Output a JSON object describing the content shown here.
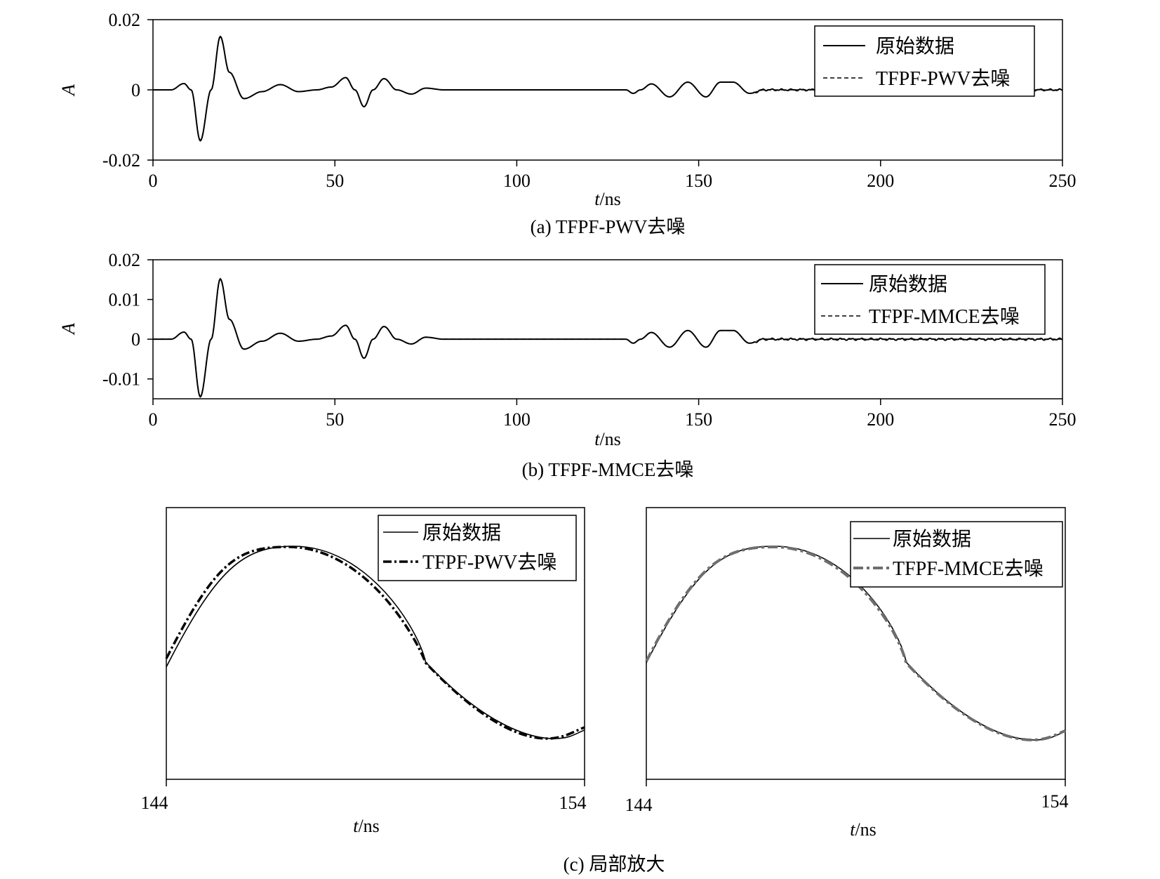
{
  "chart_data": [
    {
      "id": "a",
      "type": "line",
      "caption": "(a) TFPF-PWV去噪",
      "xlabel_var": "t",
      "xlabel_unit": "/ns",
      "ylabel": "A",
      "xlim": [
        0,
        250
      ],
      "ylim": [
        -0.02,
        0.02
      ],
      "xticks": [
        "0",
        "50",
        "100",
        "150",
        "200",
        "250"
      ],
      "yticks": [
        "0.02",
        "0",
        "-0.02"
      ],
      "ytick_values": [
        0.02,
        0,
        -0.02
      ],
      "legend_position": "top-right",
      "series": [
        {
          "name": "原始数据",
          "style": "solid",
          "color": "#000000"
        },
        {
          "name": "TFPF-PWV去噪",
          "style": "dashed",
          "color": "#000000"
        }
      ],
      "key_points": {
        "t": [
          0,
          5,
          8.5,
          10.5,
          13,
          16,
          18.5,
          21,
          25,
          30,
          35,
          40,
          45,
          49,
          53,
          55.5,
          58,
          60.5,
          63.5,
          67,
          71,
          75,
          80,
          125,
          130,
          132,
          134,
          137,
          142,
          147,
          152,
          156,
          159.5,
          164,
          168,
          175,
          250
        ],
        "A": [
          0,
          0,
          0.0018,
          0,
          -0.0145,
          0,
          0.0152,
          0.005,
          -0.0025,
          -0.0005,
          0.0015,
          -0.0005,
          0,
          0.0008,
          0.0035,
          0,
          -0.0048,
          0,
          0.0032,
          0,
          -0.0012,
          0.0005,
          0,
          0,
          0,
          -0.001,
          0,
          0.0017,
          -0.002,
          0.0022,
          -0.002,
          0.0022,
          0.0022,
          -0.001,
          0,
          0,
          0
        ]
      }
    },
    {
      "id": "b",
      "type": "line",
      "caption": "(b) TFPF-MMCE去噪",
      "xlabel_var": "t",
      "xlabel_unit": "/ns",
      "ylabel": "A",
      "xlim": [
        0,
        250
      ],
      "ylim": [
        -0.015,
        0.02
      ],
      "xticks": [
        "0",
        "50",
        "100",
        "150",
        "200",
        "250"
      ],
      "yticks": [
        "0.02",
        "0.01",
        "0",
        "-0.01"
      ],
      "ytick_values": [
        0.02,
        0.01,
        0,
        -0.01
      ],
      "legend_position": "top-right",
      "series": [
        {
          "name": "原始数据",
          "style": "solid",
          "color": "#000000"
        },
        {
          "name": "TFPF-MMCE去噪",
          "style": "dashed",
          "color": "#000000"
        }
      ],
      "key_points": {
        "t": [
          0,
          5,
          8.5,
          10.5,
          13,
          16,
          18.5,
          21,
          25,
          30,
          35,
          40,
          45,
          49,
          53,
          55.5,
          58,
          60.5,
          63.5,
          67,
          71,
          75,
          80,
          125,
          130,
          132,
          134,
          137,
          142,
          147,
          152,
          156,
          159.5,
          164,
          168,
          175,
          250
        ],
        "A": [
          0,
          0,
          0.0018,
          0,
          -0.0145,
          0,
          0.0152,
          0.005,
          -0.0025,
          -0.0005,
          0.0015,
          -0.0005,
          0,
          0.0008,
          0.0035,
          0,
          -0.0048,
          0,
          0.0032,
          0,
          -0.0012,
          0.0005,
          0,
          0,
          0,
          -0.001,
          0,
          0.0017,
          -0.002,
          0.0022,
          -0.002,
          0.0022,
          0.0022,
          -0.001,
          0,
          0,
          0
        ]
      }
    },
    {
      "id": "c1",
      "type": "line",
      "xlabel_var": "t",
      "xlabel_unit": "/ns",
      "xlim": [
        144,
        154
      ],
      "xticks": [
        "144",
        "154"
      ],
      "legend_position": "top-right",
      "series": [
        {
          "name": "原始数据",
          "style": "solid",
          "color": "#000000"
        },
        {
          "name": "TFPF-PWV去噪",
          "style": "dash-dot",
          "color": "#000000"
        }
      ]
    },
    {
      "id": "c2",
      "type": "line",
      "xlabel_var": "t",
      "xlabel_unit": "/ns",
      "xlim": [
        144,
        154
      ],
      "xticks": [
        "144",
        "154"
      ],
      "legend_position": "top-right",
      "series": [
        {
          "name": "原始数据",
          "style": "solid",
          "color": "#000000"
        },
        {
          "name": "TFPF-MMCE去噪",
          "style": "dash-dot",
          "color": "#6e6e6e"
        }
      ]
    }
  ],
  "figure": {
    "caption_c": "(c) 局部放大"
  }
}
